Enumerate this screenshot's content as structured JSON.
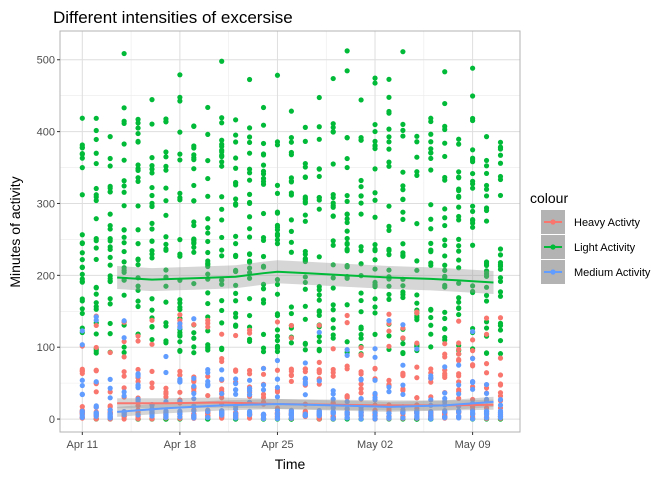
{
  "chart_data": {
    "type": "scatter",
    "title": "Different intensities of excersise",
    "xlabel": "Time",
    "ylabel": "Minutes of activity",
    "legend_title": "colour",
    "legend_position": "right",
    "grid": true,
    "x_ticks": [
      "Apr 11",
      "Apr 18",
      "Apr 25",
      "May 02",
      "May 09"
    ],
    "x_tick_days": [
      0,
      7,
      14,
      21,
      28
    ],
    "y_ticks": [
      0,
      100,
      200,
      300,
      400,
      500
    ],
    "ylim": [
      -18,
      540
    ],
    "series": [
      {
        "name": "Heavy Activty",
        "color": "#F8766D",
        "trend": [
          [
            2.5,
            22
          ],
          [
            6,
            22
          ],
          [
            10,
            23
          ],
          [
            14,
            21
          ],
          [
            18,
            20
          ],
          [
            22,
            19
          ],
          [
            26,
            19
          ],
          [
            29.5,
            20
          ]
        ]
      },
      {
        "name": "Light Activity",
        "color": "#00BA38",
        "trend": [
          [
            2.5,
            197
          ],
          [
            5,
            194
          ],
          [
            8,
            196
          ],
          [
            11,
            198
          ],
          [
            13,
            203
          ],
          [
            14,
            205
          ],
          [
            16,
            203
          ],
          [
            19,
            200
          ],
          [
            22,
            197
          ],
          [
            25,
            195
          ],
          [
            27,
            193
          ],
          [
            29.5,
            190
          ]
        ]
      },
      {
        "name": "Medium Activity",
        "color": "#619CFF",
        "trend": [
          [
            2.5,
            10
          ],
          [
            6,
            15
          ],
          [
            10,
            19
          ],
          [
            14,
            21
          ],
          [
            18,
            19
          ],
          [
            22,
            17
          ],
          [
            26,
            19
          ],
          [
            29.5,
            24
          ]
        ]
      }
    ]
  }
}
